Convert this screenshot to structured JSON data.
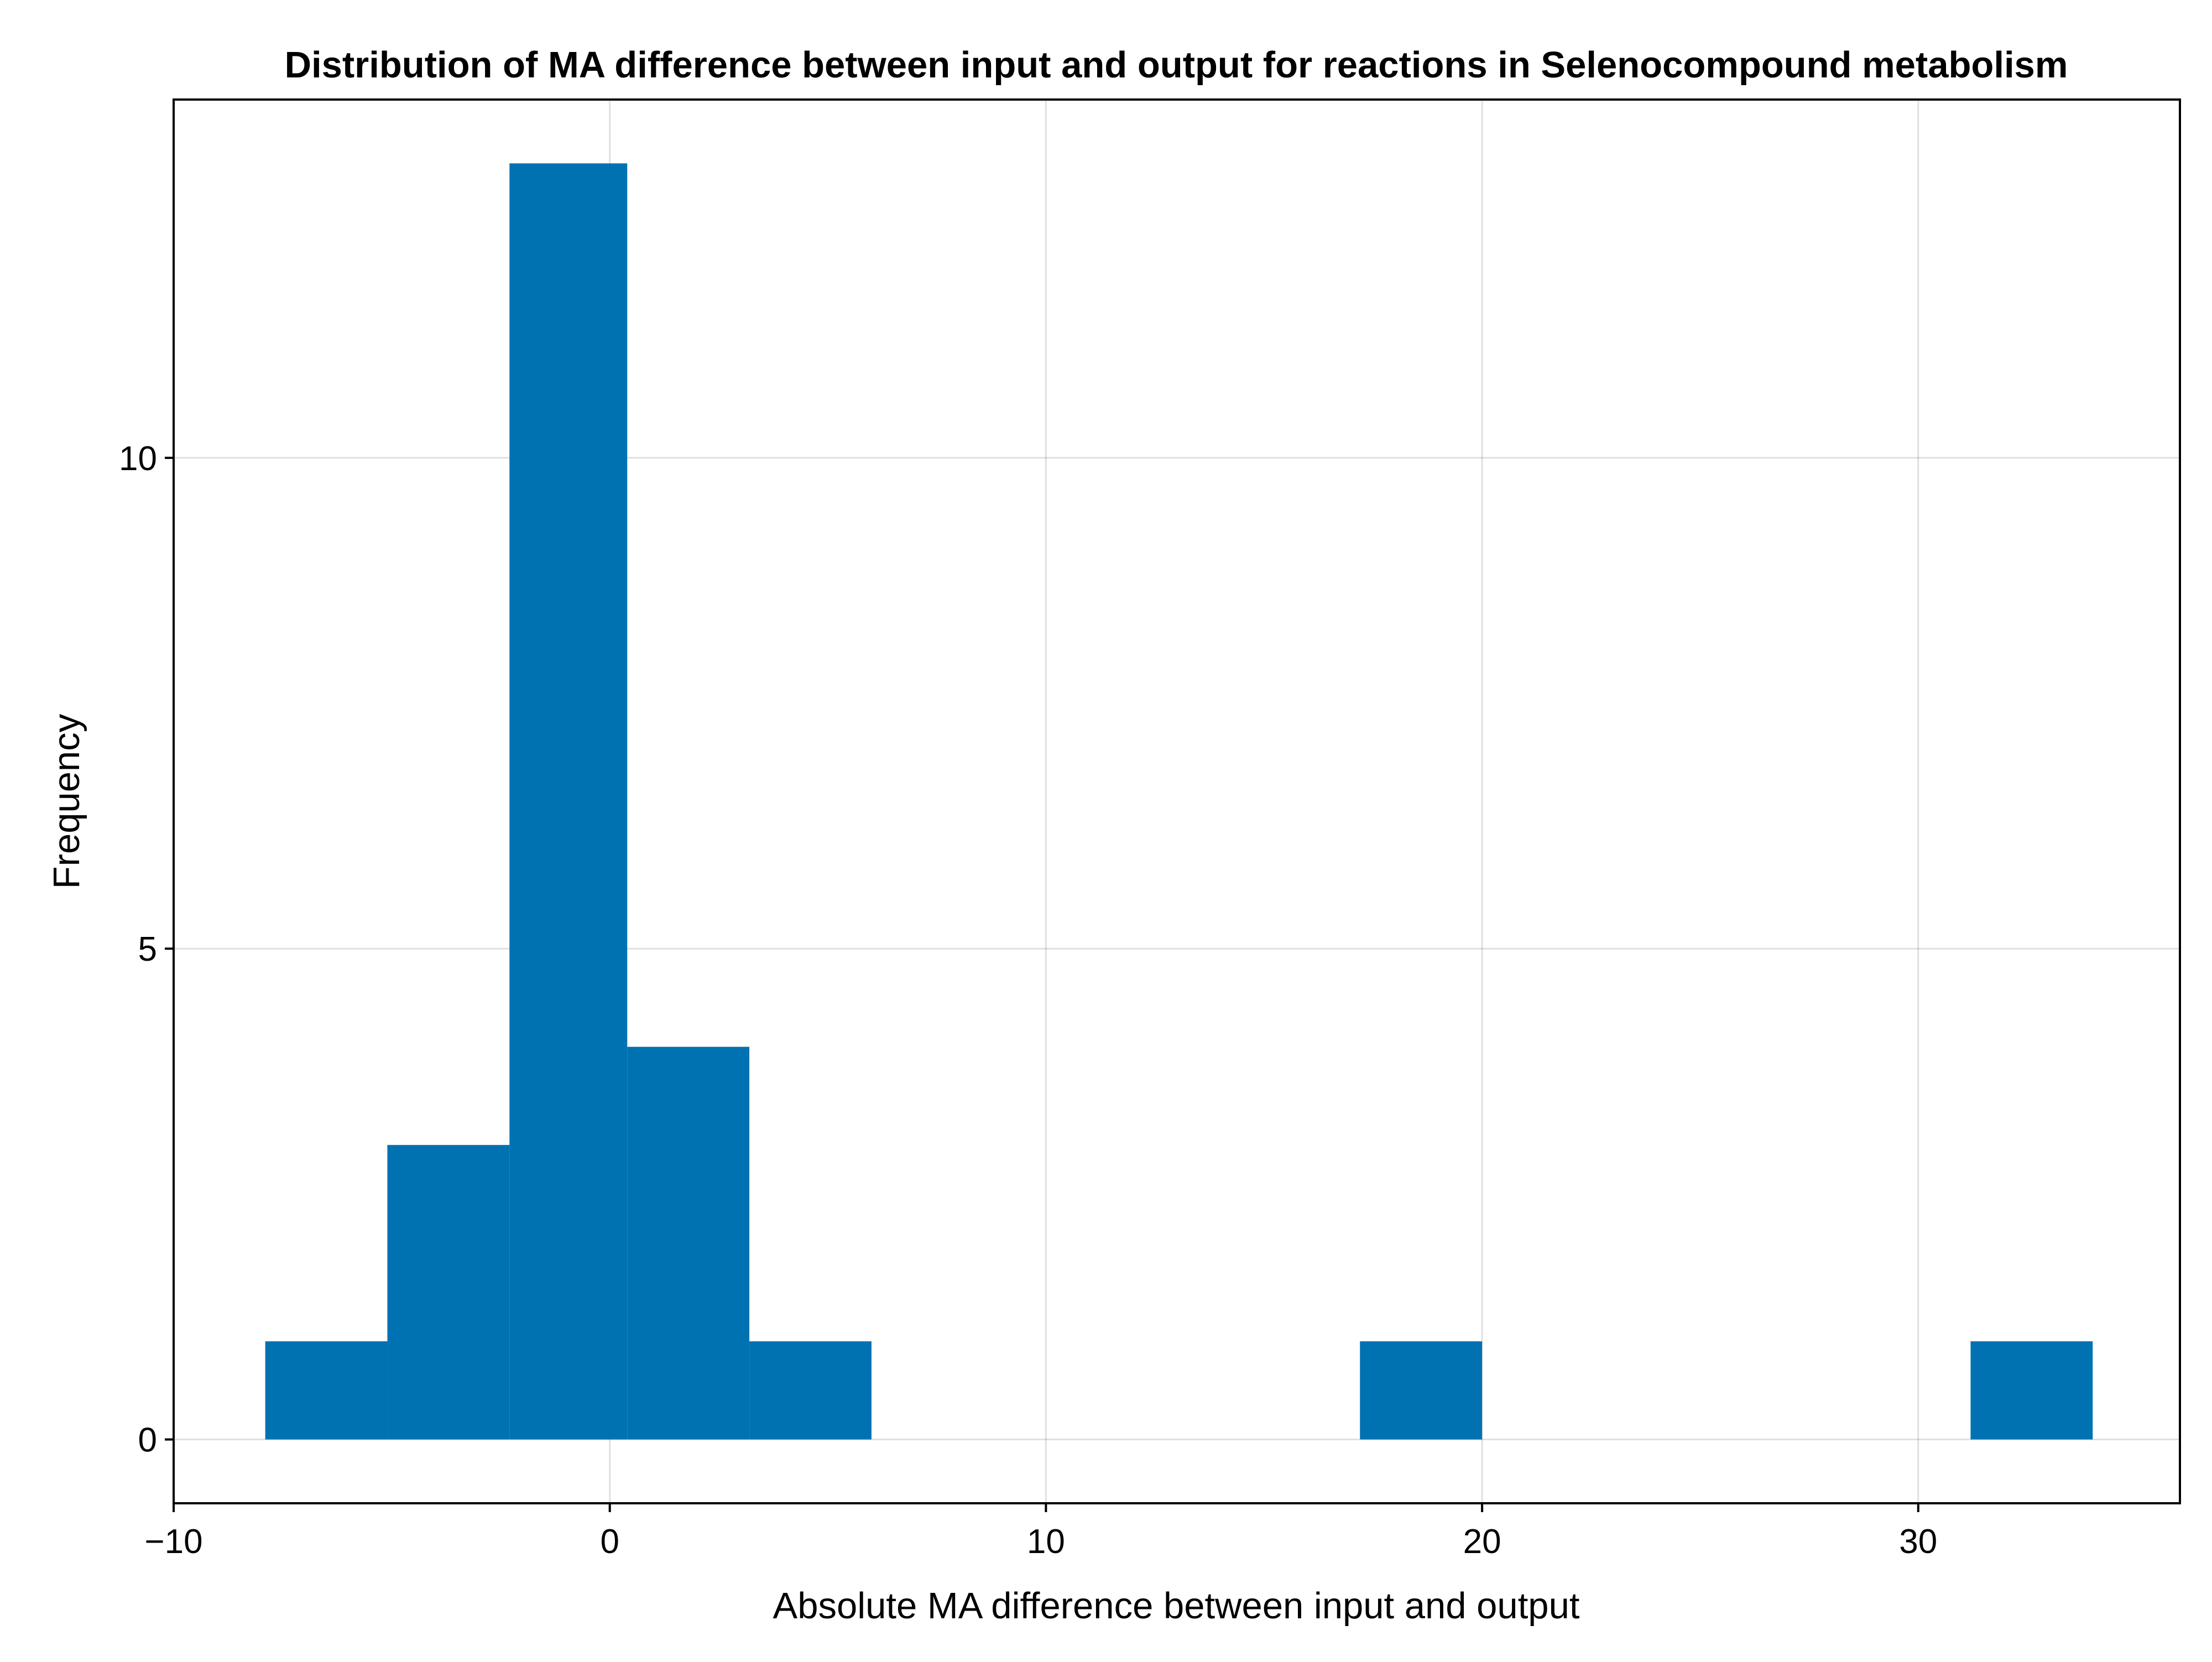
{
  "chart_data": {
    "type": "bar",
    "title": "Distribution of MA difference between input and output for reactions in Selenocompound metabolism",
    "xlabel": "Absolute MA difference between input and output",
    "ylabel": "Frequency",
    "xlim": [
      -10,
      36
    ],
    "ylim": [
      -0.65,
      13.65
    ],
    "xticks": [
      -10,
      0,
      10,
      20,
      30
    ],
    "xtick_labels": [
      "−10",
      "0",
      "10",
      "20",
      "30"
    ],
    "yticks": [
      0,
      5,
      10
    ],
    "ytick_labels": [
      "0",
      "5",
      "10"
    ],
    "grid": true,
    "bar_color": "#0072b2",
    "bins": [
      {
        "x0": -7.9,
        "x1": -5.1,
        "count": 1
      },
      {
        "x0": -5.1,
        "x1": -2.3,
        "count": 3
      },
      {
        "x0": -2.3,
        "x1": 0.4,
        "count": 13
      },
      {
        "x0": 0.4,
        "x1": 3.2,
        "count": 4
      },
      {
        "x0": 3.2,
        "x1": 6.0,
        "count": 1
      },
      {
        "x0": 17.2,
        "x1": 20.0,
        "count": 1
      },
      {
        "x0": 31.2,
        "x1": 34.0,
        "count": 1
      }
    ]
  }
}
